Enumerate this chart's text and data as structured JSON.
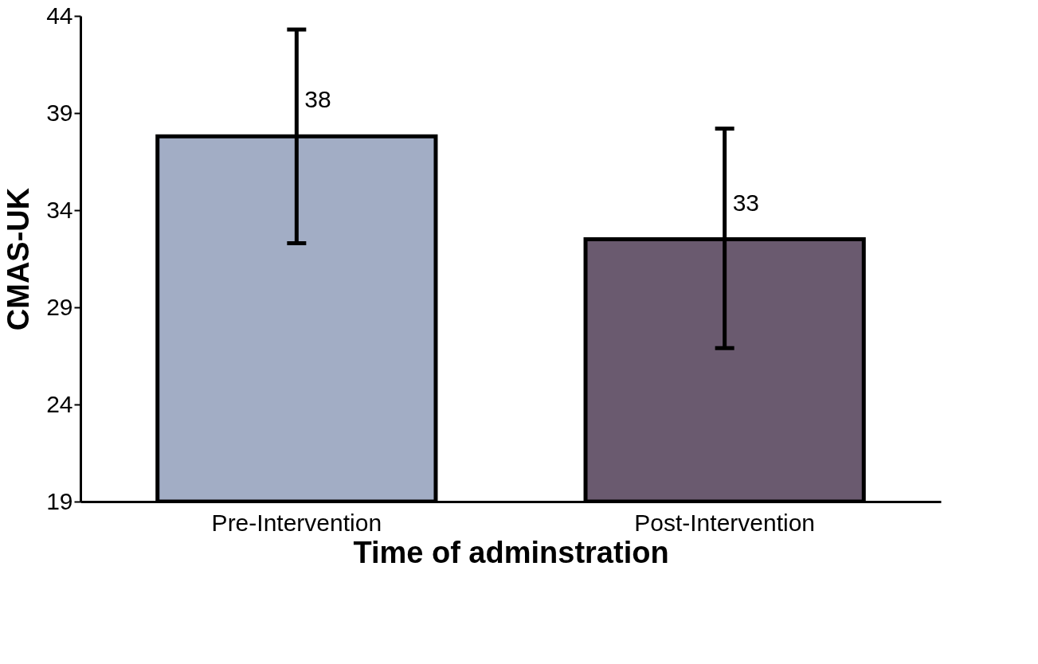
{
  "chart_data": {
    "type": "bar",
    "xlabel": "Time of adminstration",
    "ylabel": "CMAS-UK",
    "categories": [
      "Pre-Intervention",
      "Post-Intervention"
    ],
    "values": [
      37.8,
      32.5
    ],
    "colors": [
      "#a2adc5",
      "#6a5a6f"
    ],
    "errors": [
      [
        32.3,
        43.3
      ],
      [
        26.9,
        38.2
      ]
    ],
    "value_labels": [
      "38",
      "33"
    ],
    "ylim": [
      19,
      44
    ],
    "yticks": [
      19,
      24,
      29,
      34,
      39,
      44
    ]
  }
}
